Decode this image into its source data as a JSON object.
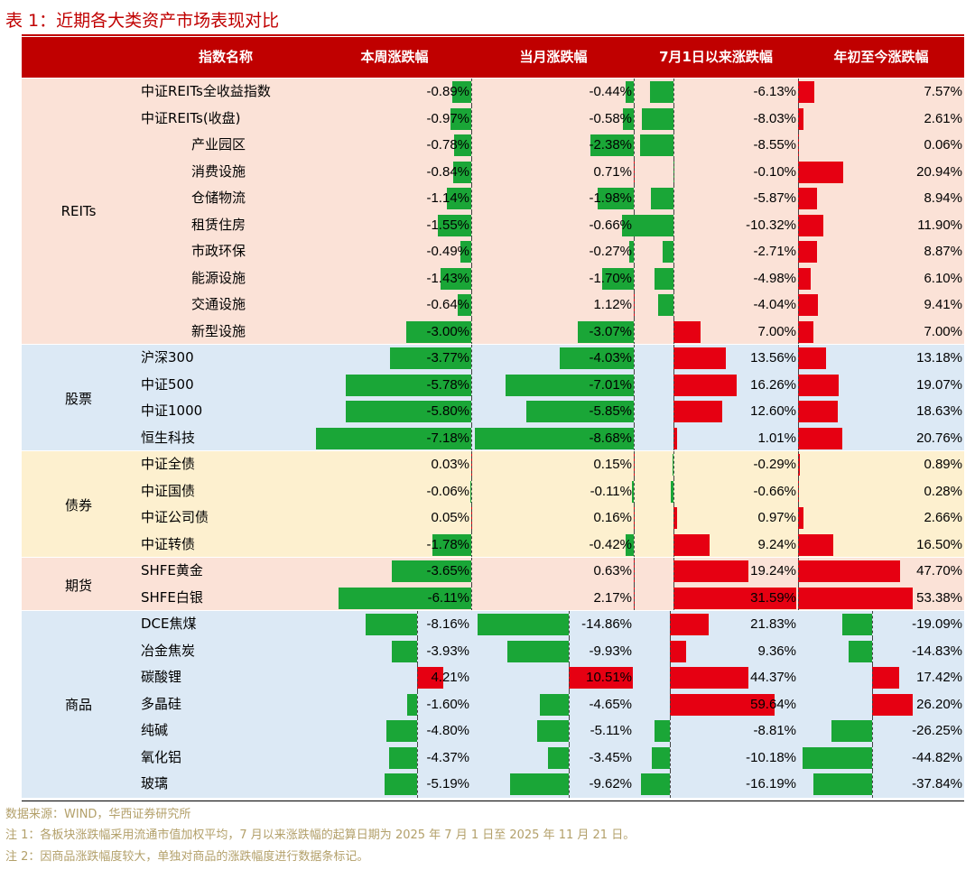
{
  "title": "表 1：近期各大类资产市场表现对比",
  "headers": [
    "指数名称",
    "本周涨跌幅",
    "当月涨跌幅",
    "7月1日以来涨跌幅",
    "年初至今涨跌幅"
  ],
  "colors": {
    "positive": "#e60012",
    "negative": "#1aa637",
    "header_bg": "#c00000"
  },
  "groups": [
    {
      "label": "REITs",
      "bg": "#fbe2d7",
      "indent": false,
      "rows": [
        {
          "name": "中证REITs全收益指数",
          "indent": 0,
          "v": [
            -0.89,
            -0.44,
            -6.13,
            7.57
          ]
        },
        {
          "name": "中证REITs(收盘)",
          "indent": 0,
          "v": [
            -0.97,
            -0.58,
            -8.03,
            2.61
          ]
        },
        {
          "name": "产业园区",
          "indent": 1,
          "v": [
            -0.78,
            -2.38,
            -8.55,
            0.06
          ]
        },
        {
          "name": "消费设施",
          "indent": 1,
          "v": [
            -0.84,
            0.71,
            -0.1,
            20.94
          ]
        },
        {
          "name": "仓储物流",
          "indent": 1,
          "v": [
            -1.14,
            -1.98,
            -5.87,
            8.94
          ]
        },
        {
          "name": "租赁住房",
          "indent": 1,
          "v": [
            -1.55,
            -0.66,
            -10.32,
            11.9
          ]
        },
        {
          "name": "市政环保",
          "indent": 1,
          "v": [
            -0.49,
            -0.27,
            -2.71,
            8.87
          ]
        },
        {
          "name": "能源设施",
          "indent": 1,
          "v": [
            -1.43,
            -1.7,
            -4.98,
            6.1
          ]
        },
        {
          "name": "交通设施",
          "indent": 1,
          "v": [
            -0.64,
            1.12,
            -4.04,
            9.41
          ]
        },
        {
          "name": "新型设施",
          "indent": 1,
          "v": [
            -3.0,
            -3.07,
            7.0,
            7.0
          ]
        }
      ]
    },
    {
      "label": "股票",
      "bg": "#dce9f5",
      "rows": [
        {
          "name": "沪深300",
          "indent": 0,
          "v": [
            -3.77,
            -4.03,
            13.56,
            13.18
          ]
        },
        {
          "name": "中证500",
          "indent": 0,
          "v": [
            -5.78,
            -7.01,
            16.26,
            19.07
          ]
        },
        {
          "name": "中证1000",
          "indent": 0,
          "v": [
            -5.8,
            -5.85,
            12.6,
            18.63
          ]
        },
        {
          "name": "恒生科技",
          "indent": 0,
          "v": [
            -7.18,
            -8.68,
            1.01,
            20.76
          ]
        }
      ]
    },
    {
      "label": "债券",
      "bg": "#fdf0cf",
      "rows": [
        {
          "name": "中证全债",
          "indent": 0,
          "v": [
            0.03,
            0.15,
            -0.29,
            0.89
          ]
        },
        {
          "name": "中证国债",
          "indent": 0,
          "v": [
            -0.06,
            -0.11,
            -0.66,
            0.28
          ]
        },
        {
          "name": "中证公司债",
          "indent": 0,
          "v": [
            0.05,
            0.16,
            0.97,
            2.66
          ]
        },
        {
          "name": "中证转债",
          "indent": 0,
          "v": [
            -1.78,
            -0.42,
            9.24,
            16.5
          ]
        }
      ]
    },
    {
      "label": "期货",
      "bg": "#fbe2d7",
      "rows": [
        {
          "name": "SHFE黄金",
          "indent": 0,
          "v": [
            -3.65,
            0.63,
            19.24,
            47.7
          ]
        },
        {
          "name": "SHFE白银",
          "indent": 0,
          "v": [
            -6.11,
            2.17,
            31.59,
            53.38
          ]
        }
      ]
    },
    {
      "label": "商品",
      "bg": "#dce9f5",
      "commodity": true,
      "rows": [
        {
          "name": "DCE焦煤",
          "indent": 0,
          "v": [
            -8.16,
            -14.86,
            21.83,
            -19.09
          ]
        },
        {
          "name": "冶金焦炭",
          "indent": 0,
          "v": [
            -3.93,
            -9.93,
            9.36,
            -14.83
          ]
        },
        {
          "name": "碳酸锂",
          "indent": 0,
          "v": [
            4.21,
            10.51,
            44.37,
            17.42
          ]
        },
        {
          "name": "多晶硅",
          "indent": 0,
          "v": [
            -1.6,
            -4.65,
            59.64,
            26.2
          ]
        },
        {
          "name": "纯碱",
          "indent": 0,
          "v": [
            -4.8,
            -5.11,
            -8.81,
            -26.25
          ]
        },
        {
          "name": "氧化铝",
          "indent": 0,
          "v": [
            -4.37,
            -3.45,
            -10.18,
            -44.82
          ]
        },
        {
          "name": "玻璃",
          "indent": 0,
          "v": [
            -5.19,
            -9.62,
            -16.19,
            -37.84
          ]
        }
      ]
    }
  ],
  "notes": [
    "数据来源：WIND，华西证券研究所",
    "注 1：各板块涨跌幅采用流通市值加权平均，7 月以来涨跌幅的起算日期为 2025 年 7 月 1 日至 2025 年 11 月 21 日。",
    "注 2：因商品涨跌幅度较大，单独对商品的涨跌幅度进行数据条标记。"
  ]
}
